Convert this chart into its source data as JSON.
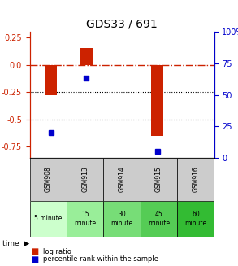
{
  "title": "GDS33 / 691",
  "samples": [
    "GSM908",
    "GSM913",
    "GSM914",
    "GSM915",
    "GSM916"
  ],
  "log_ratio": [
    -0.28,
    0.15,
    0.0,
    -0.65,
    0.0
  ],
  "log_ratio_present": [
    true,
    true,
    false,
    true,
    false
  ],
  "percentile_rank": [
    20,
    63,
    null,
    5,
    null
  ],
  "ylim_left": [
    -0.85,
    0.3
  ],
  "ylim_right": [
    0,
    100
  ],
  "left_ticks": [
    0.25,
    0.0,
    -0.25,
    -0.5,
    -0.75
  ],
  "right_ticks": [
    100,
    75,
    50,
    25,
    0
  ],
  "hline_zero": 0.0,
  "hline_minus025": -0.25,
  "hline_minus05": -0.5,
  "bar_color": "#cc2200",
  "square_color": "#0000cc",
  "bar_width": 0.35,
  "time_labels": [
    "5 minute",
    "15\nminute",
    "30\nminute",
    "45\nminute",
    "60\nminute"
  ],
  "time_colors": [
    "#ccffcc",
    "#99ee99",
    "#77dd77",
    "#55cc55",
    "#33bb33"
  ],
  "gsm_bg_color": "#cccccc",
  "legend_items": [
    "log ratio",
    "percentile rank within the sample"
  ],
  "legend_colors": [
    "#cc2200",
    "#0000cc"
  ],
  "time_label_prefix": "time",
  "figsize": [
    2.93,
    3.27
  ],
  "dpi": 100
}
